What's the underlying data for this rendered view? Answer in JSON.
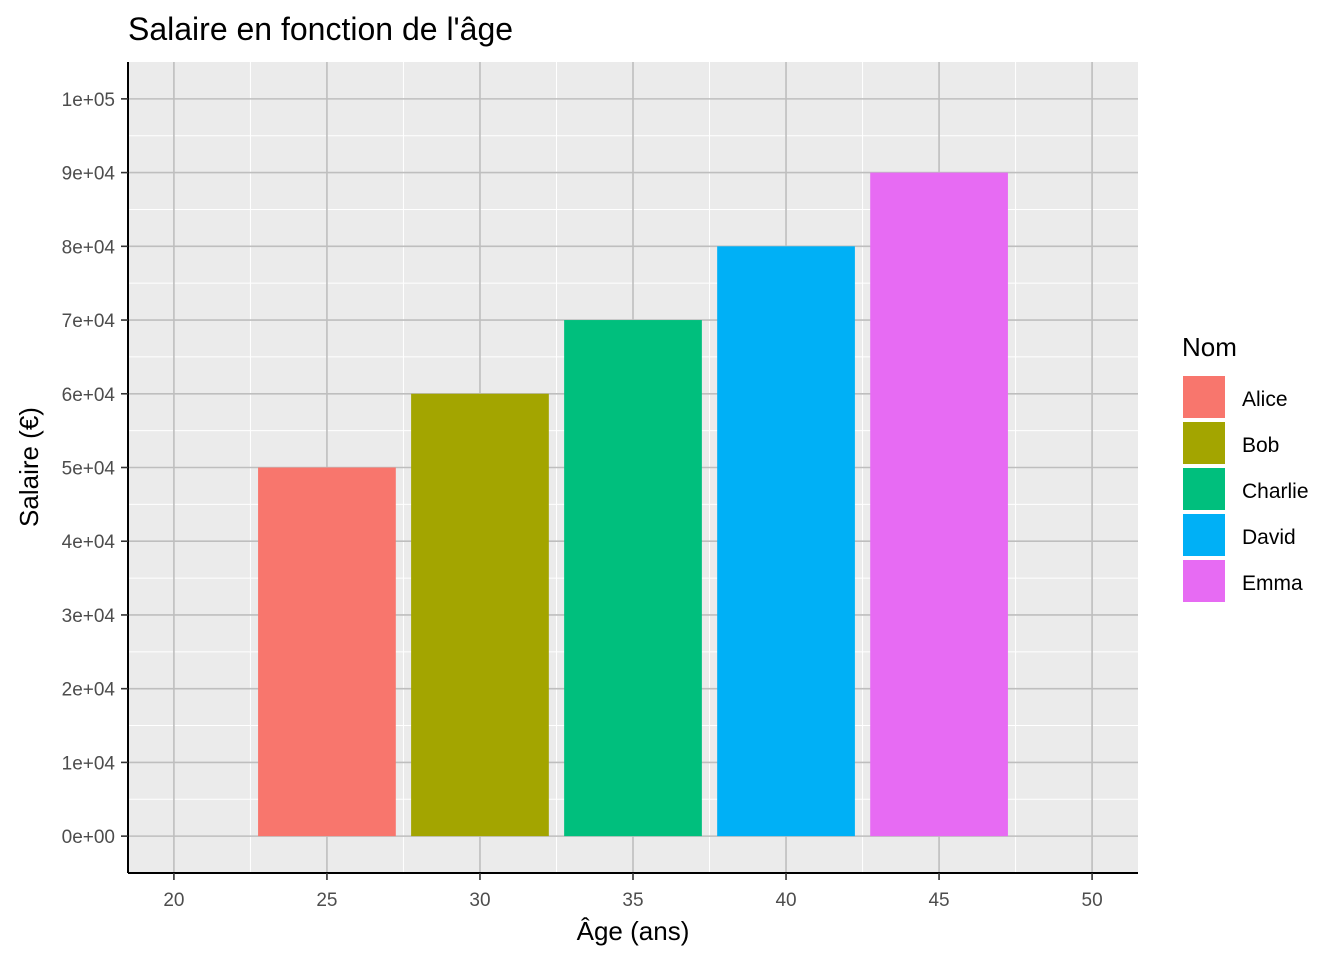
{
  "chart_data": {
    "type": "bar",
    "title": "Salaire en fonction de l'âge",
    "xlabel": "Âge (ans)",
    "ylabel": "Salaire (€)",
    "xlim": [
      18.5,
      51.5
    ],
    "ylim": [
      -5000,
      105000
    ],
    "x_ticks": [
      20,
      25,
      30,
      35,
      40,
      45,
      50
    ],
    "y_ticks": [
      0,
      10000,
      20000,
      30000,
      40000,
      50000,
      60000,
      70000,
      80000,
      90000,
      100000
    ],
    "y_tick_labels": [
      "0e+00",
      "1e+04",
      "2e+04",
      "3e+04",
      "4e+04",
      "5e+04",
      "6e+04",
      "7e+04",
      "8e+04",
      "9e+04",
      "1e+05"
    ],
    "bar_width": 4.5,
    "grid": true,
    "legend": {
      "title": "Nom",
      "position": "right"
    },
    "data": [
      {
        "name": "Alice",
        "age": 25,
        "salary": 50000,
        "color": "#F8766D"
      },
      {
        "name": "Bob",
        "age": 30,
        "salary": 60000,
        "color": "#A3A500"
      },
      {
        "name": "Charlie",
        "age": 35,
        "salary": 70000,
        "color": "#00BF7D"
      },
      {
        "name": "David",
        "age": 40,
        "salary": 80000,
        "color": "#00B0F6"
      },
      {
        "name": "Emma",
        "age": 45,
        "salary": 90000,
        "color": "#E76BF3"
      }
    ],
    "colors": {
      "panel": "#EBEBEB",
      "grid_major": "#BEBEBE",
      "grid_minor": "#FFFFFF",
      "axis": "#000000"
    }
  }
}
